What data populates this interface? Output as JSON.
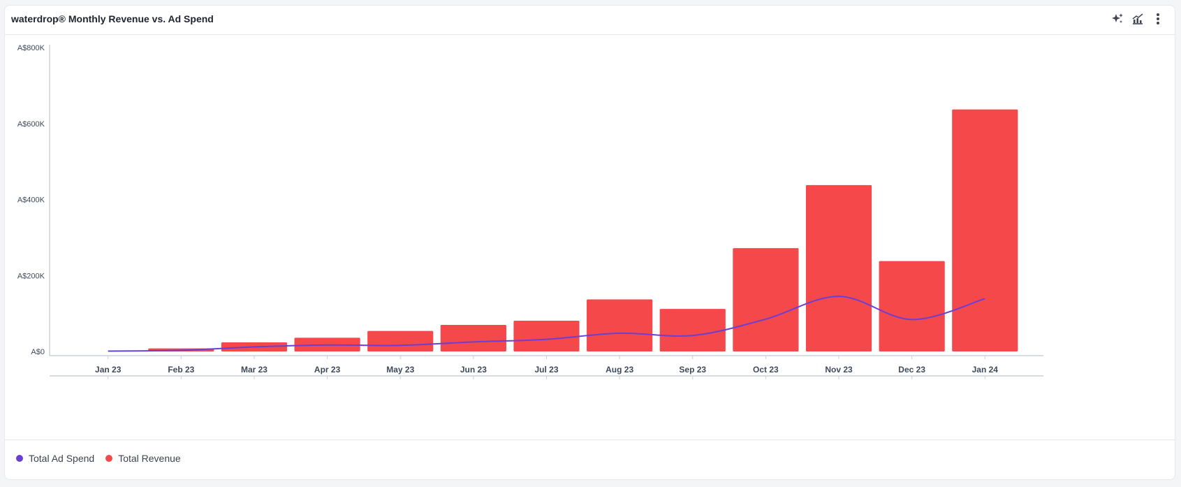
{
  "card": {
    "title": "waterdrop® Monthly Revenue vs. Ad Spend",
    "icons": [
      "sparkle-icon",
      "chart-type-icon",
      "more-vertical-icon"
    ]
  },
  "colors": {
    "revenue": "#f5484b",
    "ad_spend": "#6a3fd6",
    "axis": "#c9d0d8",
    "tick_text": "#3d4a5c"
  },
  "legend": [
    {
      "label": "Total Ad Spend",
      "color": "#6a3fd6"
    },
    {
      "label": "Total Revenue",
      "color": "#f5484b"
    }
  ],
  "chart_data": {
    "type": "bar",
    "title": "waterdrop® Monthly Revenue vs. Ad Spend",
    "xlabel": "",
    "ylabel": "",
    "categories": [
      "Jan 23",
      "Feb 23",
      "Mar 23",
      "Apr 23",
      "May 23",
      "Jun 23",
      "Jul 23",
      "Aug 23",
      "Sep 23",
      "Oct 23",
      "Nov 23",
      "Dec 23",
      "Jan 24"
    ],
    "y_ticks": [
      "A$0",
      "A$200K",
      "A$400K",
      "A$600K",
      "A$800K"
    ],
    "ylim": [
      0,
      800000
    ],
    "series": [
      {
        "name": "Total Revenue",
        "type": "bar",
        "values": [
          0,
          8000,
          24000,
          36000,
          54000,
          70000,
          81000,
          137000,
          112000,
          272000,
          438000,
          238000,
          637000
        ]
      },
      {
        "name": "Total Ad Spend",
        "type": "line",
        "values": [
          1000,
          3000,
          12000,
          17000,
          16000,
          25000,
          32000,
          48000,
          42000,
          85000,
          145000,
          84000,
          139000
        ]
      }
    ],
    "grid": false,
    "legend_position": "bottom-left"
  }
}
